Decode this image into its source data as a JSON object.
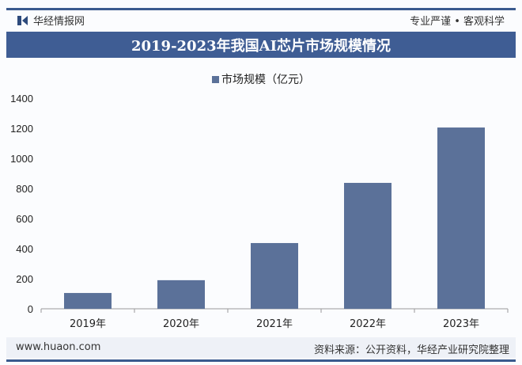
{
  "header": {
    "site_name": "华经情报网",
    "slogan": "专业严谨 • 客观科学"
  },
  "footer": {
    "url": "www.huaon.com",
    "source": "资料来源：公开资料，华经产业研究院整理"
  },
  "watermark": "华经产业研究院",
  "chart_data": {
    "type": "bar",
    "title": "2019-2023年我国AI芯片市场规模情况",
    "categories": [
      "2019年",
      "2020年",
      "2021年",
      "2022年",
      "2023年"
    ],
    "series": [
      {
        "name": "市场规模（亿元）",
        "values": [
          105,
          190,
          437,
          837,
          1205
        ],
        "color": "#5b7199"
      }
    ],
    "ylim": [
      0,
      1400
    ],
    "yticks": [
      0,
      200,
      400,
      600,
      800,
      1000,
      1200,
      1400
    ],
    "legend": "top-center",
    "grid": false,
    "xlabel": "",
    "ylabel": ""
  }
}
